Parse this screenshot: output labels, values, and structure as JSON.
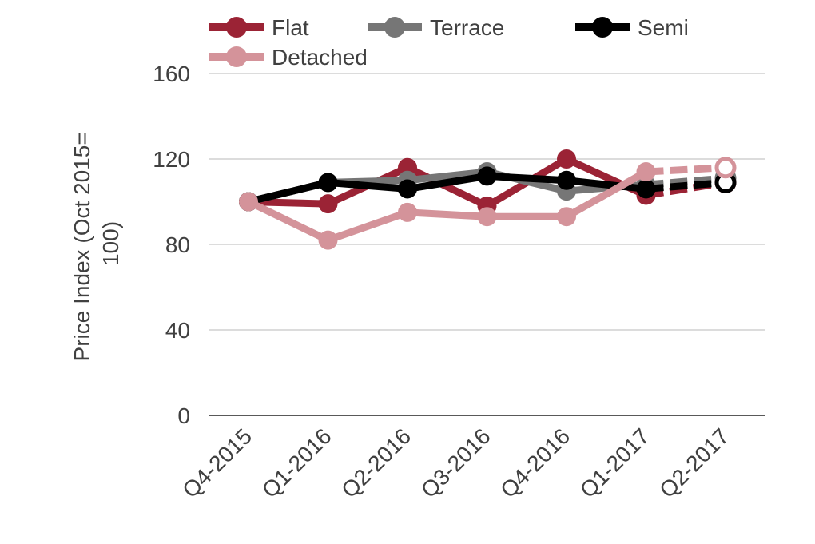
{
  "chart_data": {
    "type": "line",
    "title": "",
    "ylabel_lines": [
      "Price Index (Oct 2015=",
      "100)"
    ],
    "xlabel": "",
    "categories": [
      "Q4-2015",
      "Q1-2016",
      "Q2-2016",
      "Q3-2016",
      "Q4-2016",
      "Q1-2017",
      "Q2-2017"
    ],
    "ylim": [
      0,
      160
    ],
    "yticks": [
      0,
      40,
      80,
      120,
      160
    ],
    "grid": true,
    "legend_position": "top",
    "projected_from_index": 5,
    "series": [
      {
        "name": "Flat",
        "color": "#9b2335",
        "values": [
          100,
          99,
          116,
          98,
          120,
          103,
          109
        ]
      },
      {
        "name": "Terrace",
        "color": "#767676",
        "values": [
          100,
          109,
          110,
          114,
          105,
          108,
          111
        ]
      },
      {
        "name": "Semi",
        "color": "#000000",
        "values": [
          100,
          109,
          106,
          112,
          110,
          106,
          109
        ]
      },
      {
        "name": "Detached",
        "color": "#d4939a",
        "values": [
          100,
          82,
          95,
          93,
          93,
          114,
          116
        ]
      }
    ]
  }
}
